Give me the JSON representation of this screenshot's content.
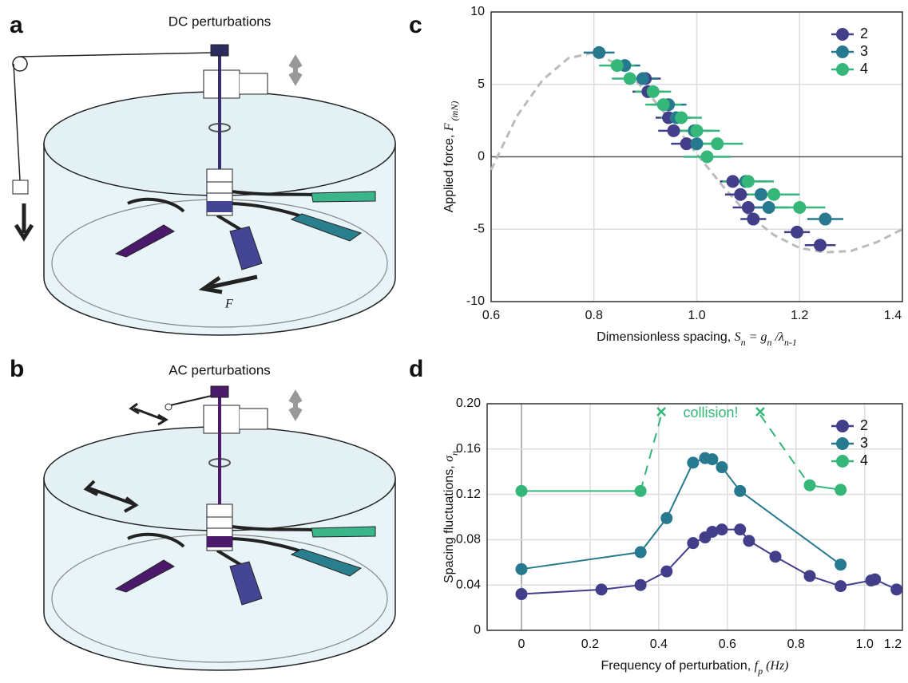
{
  "panels": [
    {
      "label": "a",
      "title": "DC perturbations",
      "force": "F"
    },
    {
      "label": "b",
      "title": "AC perturbations"
    }
  ],
  "chart_data": [
    {
      "panel": "c",
      "type": "scatter",
      "xlabel_parts": [
        "Dimensionless spacing, ",
        "S",
        "n",
        " = g",
        "n",
        " /λ",
        "n-1"
      ],
      "ylabel_parts": [
        "Applied force, ",
        "F",
        " (mN)"
      ],
      "xlim": [
        0.6,
        1.4
      ],
      "ylim": [
        -10,
        10
      ],
      "xticks": [
        0.6,
        0.8,
        {
          "value": 1,
          "label": "1.0"
        },
        1.2,
        1.4
      ],
      "yticks": [
        -10,
        -5,
        0,
        5,
        10
      ],
      "grid": true,
      "legend": "upper right",
      "fit": {
        "color": "#bbbbbb",
        "x": [
          0.6,
          0.65,
          0.7,
          0.75,
          0.8,
          0.85,
          0.9,
          0.95,
          1.0,
          1.05,
          1.1,
          1.15,
          1.2,
          1.25,
          1.3,
          1.35,
          1.4
        ],
        "values": [
          -0.9,
          2.8,
          5.3,
          6.8,
          7.2,
          6.3,
          4.6,
          2.5,
          0.2,
          -2.0,
          -4.0,
          -5.4,
          -6.3,
          -6.6,
          -6.5,
          -5.9,
          -5.0
        ]
      },
      "series": [
        {
          "name": "2",
          "color": "#433e8a",
          "x": [
            0.9,
            0.905,
            0.945,
            0.955,
            0.98,
            1.07,
            1.085,
            1.1,
            1.11,
            1.195,
            1.24
          ],
          "values": [
            5.4,
            4.5,
            2.7,
            1.8,
            0.9,
            -1.7,
            -2.6,
            -3.5,
            -4.3,
            -5.2,
            -6.1
          ],
          "xerr": [
            0.03,
            0.03,
            0.025,
            0.03,
            0.03,
            0.025,
            0.03,
            0.03,
            0.025,
            0.025,
            0.03
          ]
        },
        {
          "name": "3",
          "color": "#26798e",
          "x": [
            0.81,
            0.86,
            0.895,
            0.945,
            0.96,
            0.995,
            1.0,
            1.095,
            1.125,
            1.14,
            1.25
          ],
          "values": [
            7.2,
            6.3,
            5.4,
            3.6,
            2.7,
            1.8,
            0.9,
            -1.7,
            -2.6,
            -3.5,
            -4.3
          ],
          "xerr": [
            0.03,
            0.03,
            0.03,
            0.035,
            0.03,
            0.035,
            0.03,
            0.04,
            0.035,
            0.04,
            0.035
          ]
        },
        {
          "name": "4",
          "color": "#35b779",
          "x": [
            0.845,
            0.87,
            0.915,
            0.935,
            0.97,
            1.0,
            1.02,
            1.04,
            1.1,
            1.15,
            1.2
          ],
          "values": [
            6.3,
            5.4,
            4.5,
            3.6,
            2.7,
            1.8,
            0.0,
            0.9,
            -1.7,
            -2.6,
            -3.5
          ],
          "xerr": [
            0.035,
            0.035,
            0.035,
            0.035,
            0.04,
            0.045,
            0.045,
            0.05,
            0.05,
            0.05,
            0.05
          ]
        }
      ]
    },
    {
      "panel": "d",
      "type": "line",
      "xlabel_parts": [
        "Frequency of perturbation, ",
        "f",
        "p",
        " (Hz)"
      ],
      "ylabel_parts": [
        "Spacing fluctuations, ",
        "σ",
        "n"
      ],
      "xlim": [
        -0.1,
        1.11
      ],
      "ylim": [
        0,
        0.2
      ],
      "xticks": [
        0,
        0.2,
        0.4,
        0.6,
        0.8,
        {
          "value": 1,
          "label": "1.0"
        },
        1.2
      ],
      "yticks": [
        0,
        0.04,
        0.08,
        0.12,
        0.16,
        {
          "value": 0.2,
          "label": "0.20"
        }
      ],
      "grid": true,
      "legend": "upper right",
      "annotation": "collision!",
      "series": [
        {
          "name": "2",
          "color": "#433e8a",
          "x": [
            0,
            0.233,
            0.347,
            0.423,
            0.5,
            0.535,
            0.556,
            0.584,
            0.637,
            0.663,
            0.74,
            0.84,
            0.93,
            1.019,
            1.03,
            1.093
          ],
          "values": [
            0.032,
            0.036,
            0.04,
            0.052,
            0.077,
            0.082,
            0.087,
            0.089,
            0.089,
            0.079,
            0.065,
            0.048,
            0.039,
            0.044,
            0.045,
            0.036
          ]
        },
        {
          "name": "3",
          "color": "#26798e",
          "x": [
            0,
            0.347,
            0.423,
            0.5,
            0.535,
            0.556,
            0.584,
            0.637,
            0.93
          ],
          "values": [
            0.054,
            0.069,
            0.099,
            0.148,
            0.152,
            0.151,
            0.144,
            0.123,
            0.058
          ]
        },
        {
          "name": "4",
          "color": "#35b779",
          "x": [
            0,
            0.347,
            0.84,
            0.93
          ],
          "values": [
            0.123,
            0.123,
            0.128,
            0.124
          ]
        }
      ]
    }
  ]
}
